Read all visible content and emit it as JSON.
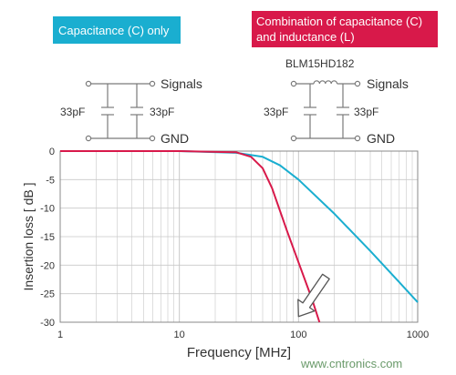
{
  "labels": {
    "cap_only": "Capacitance (C) only",
    "combo_line1": "Combination of capacitance (C)",
    "combo_line2": "and inductance (L)",
    "part_number": "BLM15HD182",
    "signals": "Signals",
    "gnd": "GND",
    "cap_value": "33pF",
    "watermark": "www.cntronics.com"
  },
  "colors": {
    "cap_only": "#1aaed0",
    "combo": "#d8194a",
    "grid": "#c8c8c8",
    "wire": "#7a7a7a",
    "arrow_fill": "#ffffff"
  },
  "chart_data": {
    "type": "line",
    "xlabel": "Frequency [MHz]",
    "ylabel": "Insertion loss [ dB ]",
    "xscale": "log",
    "xlim": [
      1,
      1000
    ],
    "ylim": [
      -30,
      0
    ],
    "xticks": [
      {
        "value": 1,
        "label": "1"
      },
      {
        "value": 10,
        "label": "10"
      },
      {
        "value": 100,
        "label": "100"
      },
      {
        "value": 1000,
        "label": "1000"
      }
    ],
    "yticks": [
      0,
      -5,
      -10,
      -15,
      -20,
      -25,
      -30
    ],
    "grid": true,
    "series": [
      {
        "color_key": "cap_only",
        "points": [
          [
            1,
            0
          ],
          [
            10,
            0
          ],
          [
            30,
            -0.3
          ],
          [
            50,
            -1
          ],
          [
            70,
            -2.5
          ],
          [
            100,
            -5
          ],
          [
            200,
            -11
          ],
          [
            400,
            -17.5
          ],
          [
            700,
            -23
          ],
          [
            1000,
            -26.5
          ]
        ]
      },
      {
        "color_key": "combo",
        "points": [
          [
            1,
            0
          ],
          [
            10,
            0
          ],
          [
            30,
            -0.2
          ],
          [
            40,
            -1
          ],
          [
            50,
            -3
          ],
          [
            60,
            -6.5
          ],
          [
            80,
            -14
          ],
          [
            100,
            -19.5
          ],
          [
            130,
            -26
          ],
          [
            150,
            -30
          ]
        ]
      }
    ],
    "annotations": [
      {
        "type": "arrow",
        "from": [
          170,
          -22
        ],
        "to": [
          100,
          -29
        ],
        "color": "white-with-gray-outline"
      }
    ]
  }
}
